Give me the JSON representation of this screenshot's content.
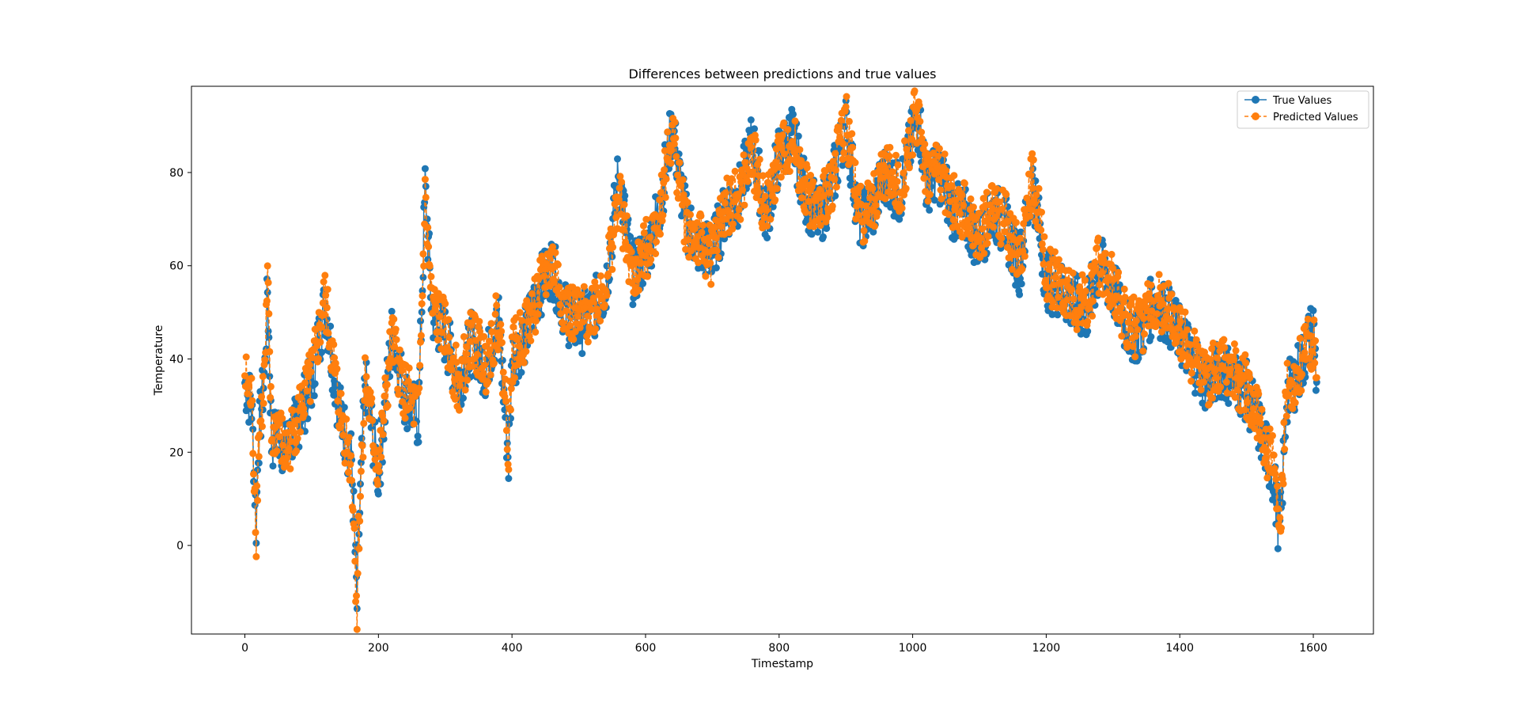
{
  "chart_data": {
    "type": "line",
    "title": "Differences between predictions and true values",
    "xlabel": "Timestamp",
    "ylabel": "Temperature",
    "xlim": [
      -80,
      1690
    ],
    "ylim": [
      -19,
      98.5
    ],
    "xticks": [
      0,
      200,
      400,
      600,
      800,
      1000,
      1200,
      1400,
      1600
    ],
    "yticks": [
      0,
      20,
      40,
      60,
      80
    ],
    "grid": false,
    "legend_position": "top-right",
    "n_points": 1603,
    "note_values": "sampled approximation of the daily series read off the plot (every 20 timestamps, envelope points)",
    "series": [
      {
        "name": "True Values",
        "color": "#1f77b4",
        "linestyle": "solid",
        "marker": "circle",
        "x": [
          0,
          10,
          17,
          20,
          30,
          34,
          40,
          50,
          60,
          80,
          100,
          120,
          140,
          160,
          168,
          170,
          180,
          200,
          220,
          240,
          260,
          270,
          280,
          300,
          320,
          340,
          360,
          380,
          395,
          400,
          420,
          440,
          460,
          480,
          500,
          520,
          540,
          560,
          580,
          600,
          620,
          640,
          660,
          680,
          700,
          720,
          740,
          760,
          780,
          800,
          820,
          840,
          860,
          880,
          900,
          920,
          940,
          960,
          980,
          1000,
          1010,
          1020,
          1040,
          1060,
          1080,
          1100,
          1120,
          1140,
          1160,
          1180,
          1200,
          1220,
          1240,
          1260,
          1280,
          1300,
          1320,
          1340,
          1360,
          1380,
          1400,
          1420,
          1440,
          1460,
          1480,
          1500,
          1520,
          1540,
          1550,
          1560,
          1580,
          1600,
          1605
        ],
        "y": [
          35,
          30,
          5,
          22,
          38,
          55,
          22,
          25,
          20,
          27,
          35,
          52,
          30,
          18,
          -13,
          0,
          35,
          15,
          45,
          32,
          27,
          77,
          50,
          45,
          35,
          44,
          38,
          48,
          18,
          40,
          45,
          55,
          60,
          50,
          47,
          50,
          55,
          80,
          58,
          62,
          72,
          90,
          70,
          64,
          63,
          72,
          75,
          87,
          70,
          84,
          88,
          75,
          70,
          78,
          90,
          70,
          72,
          80,
          75,
          88,
          91,
          78,
          80,
          72,
          70,
          65,
          72,
          68,
          60,
          78,
          57,
          55,
          52,
          50,
          60,
          55,
          47,
          45,
          52,
          50,
          45,
          40,
          35,
          38,
          36,
          33,
          25,
          15,
          2,
          32,
          38,
          47,
          35
        ]
      },
      {
        "name": "Predicted Values",
        "color": "#ff7f0e",
        "linestyle": "dashed",
        "marker": "circle",
        "x": [
          0,
          10,
          17,
          20,
          30,
          34,
          40,
          50,
          60,
          80,
          100,
          120,
          140,
          160,
          168,
          170,
          180,
          200,
          220,
          240,
          260,
          270,
          280,
          300,
          320,
          340,
          360,
          380,
          395,
          400,
          420,
          440,
          460,
          480,
          500,
          520,
          540,
          560,
          580,
          600,
          620,
          640,
          660,
          680,
          700,
          720,
          740,
          760,
          780,
          800,
          820,
          840,
          860,
          880,
          900,
          920,
          940,
          960,
          980,
          1000,
          1010,
          1020,
          1040,
          1060,
          1080,
          1100,
          1120,
          1140,
          1160,
          1180,
          1200,
          1220,
          1240,
          1260,
          1280,
          1300,
          1320,
          1340,
          1360,
          1380,
          1400,
          1420,
          1440,
          1460,
          1480,
          1500,
          1520,
          1540,
          1550,
          1560,
          1580,
          1600,
          1605
        ],
        "y": [
          36,
          31,
          4,
          21,
          37,
          56,
          23,
          26,
          19,
          28,
          36,
          53,
          31,
          17,
          -14,
          1,
          36,
          16,
          44,
          33,
          28,
          74,
          51,
          46,
          34,
          45,
          39,
          49,
          22,
          41,
          46,
          54,
          61,
          51,
          48,
          51,
          56,
          75,
          57,
          63,
          71,
          89,
          69,
          65,
          62,
          73,
          74,
          84,
          71,
          83,
          87,
          76,
          71,
          79,
          92,
          71,
          73,
          81,
          76,
          90,
          93,
          79,
          81,
          73,
          71,
          66,
          73,
          69,
          61,
          80,
          58,
          56,
          53,
          51,
          61,
          56,
          48,
          46,
          53,
          51,
          46,
          41,
          36,
          39,
          37,
          34,
          26,
          17,
          1,
          33,
          39,
          44,
          36
        ]
      }
    ]
  }
}
